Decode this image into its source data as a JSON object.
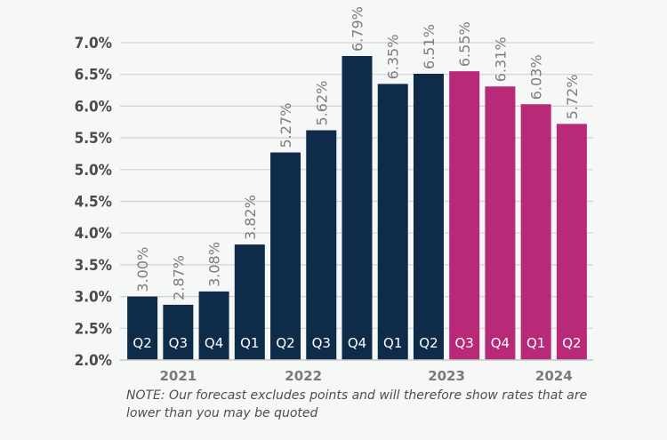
{
  "chart_data": {
    "type": "bar",
    "title": "",
    "xlabel": "",
    "ylabel": "",
    "ylim": [
      2.0,
      7.0
    ],
    "yticks": [
      "2.0%",
      "2.5%",
      "3.0%",
      "3.5%",
      "4.0%",
      "4.5%",
      "5.0%",
      "5.5%",
      "6.0%",
      "6.5%",
      "7.0%"
    ],
    "ytick_values": [
      2.0,
      2.5,
      3.0,
      3.5,
      4.0,
      4.5,
      5.0,
      5.5,
      6.0,
      6.5,
      7.0
    ],
    "grid": true,
    "categories": [
      "Q2",
      "Q3",
      "Q4",
      "Q1",
      "Q2",
      "Q3",
      "Q4",
      "Q1",
      "Q2",
      "Q3",
      "Q4",
      "Q1",
      "Q2"
    ],
    "values": [
      3.0,
      2.87,
      3.08,
      3.82,
      5.27,
      5.62,
      6.79,
      6.35,
      6.51,
      6.55,
      6.31,
      6.03,
      5.72
    ],
    "value_labels": [
      "3.00%",
      "2.87%",
      "3.08%",
      "3.82%",
      "5.27%",
      "5.62%",
      "6.79%",
      "6.35%",
      "6.51%",
      "6.55%",
      "6.31%",
      "6.03%",
      "5.72%"
    ],
    "bar_kind": [
      "actual",
      "actual",
      "actual",
      "actual",
      "actual",
      "actual",
      "actual",
      "actual",
      "actual",
      "forecast",
      "forecast",
      "forecast",
      "forecast"
    ],
    "year_groups": [
      {
        "label": "2021",
        "start": 0,
        "end": 2
      },
      {
        "label": "2022",
        "start": 3,
        "end": 6
      },
      {
        "label": "2023",
        "start": 7,
        "end": 10
      },
      {
        "label": "2024",
        "start": 11,
        "end": 12
      }
    ],
    "colors": {
      "actual": "#0f2b4a",
      "forecast": "#b82a78",
      "value_label": "#7d7d7d",
      "grid": "#d2d4d4",
      "background": "#f6f7f7"
    }
  },
  "note": "NOTE: Our forecast excludes points and will therefore show rates that are lower than you may be quoted"
}
